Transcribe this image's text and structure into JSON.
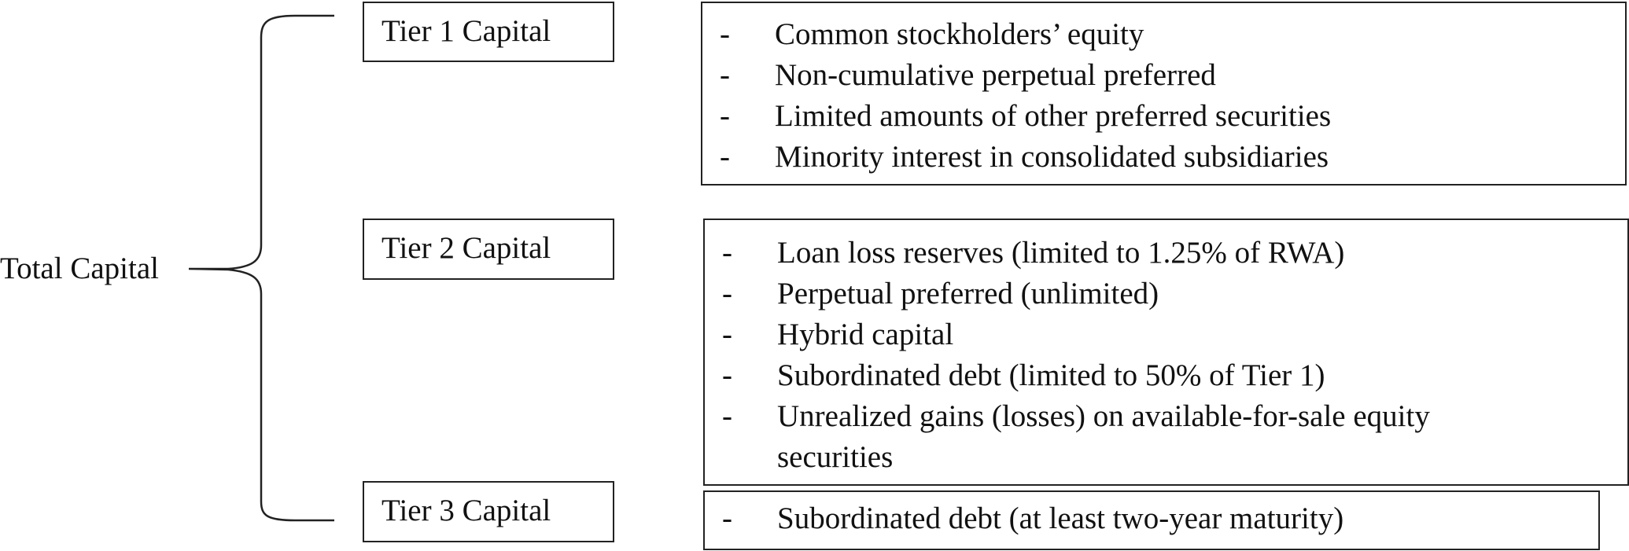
{
  "diagram": {
    "root": {
      "label": "Total Capital"
    },
    "tiers": [
      {
        "label": "Tier 1 Capital",
        "items": [
          "Common stockholders’ equity",
          "Non-cumulative perpetual preferred",
          "Limited amounts of other preferred securities",
          "Minority interest in consolidated subsidiaries"
        ]
      },
      {
        "label": "Tier 2 Capital",
        "items": [
          "Loan loss reserves (limited to 1.25% of RWA)",
          "Perpetual preferred (unlimited)",
          "Hybrid capital",
          "Subordinated debt (limited to 50% of Tier 1)",
          "Unrealized gains (losses) on available-for-sale equity securities"
        ]
      },
      {
        "label": "Tier 3 Capital",
        "items": [
          "Subordinated debt (at least two-year maturity)"
        ]
      }
    ],
    "bullet": "-",
    "colors": {
      "line": "#222222",
      "text": "#111111",
      "background": "#ffffff"
    }
  }
}
